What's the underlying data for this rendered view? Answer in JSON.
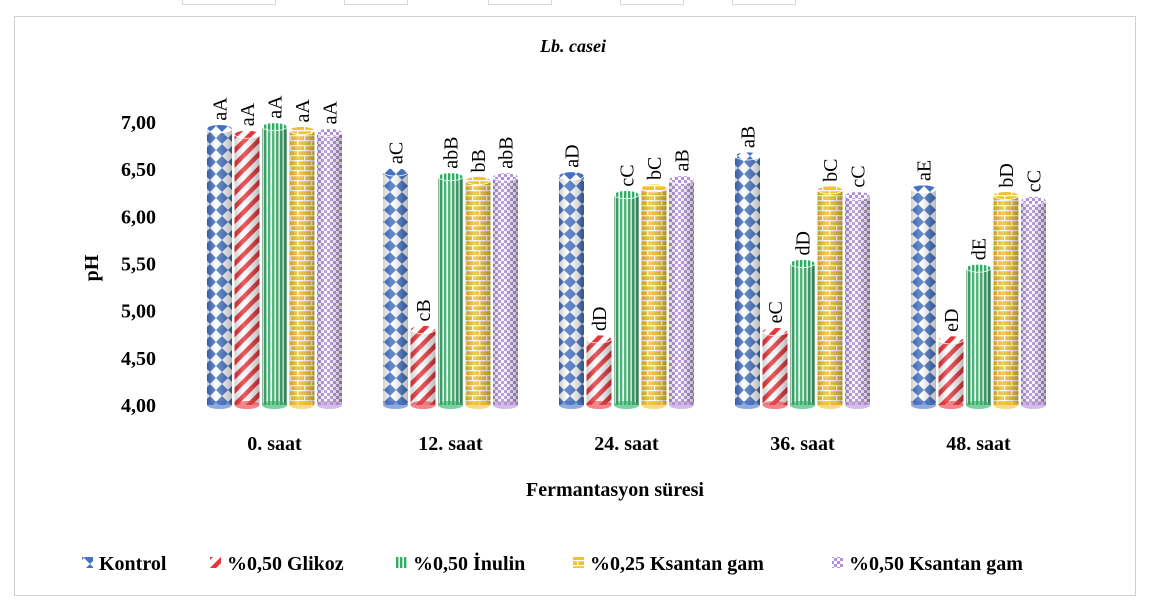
{
  "chart_data": {
    "type": "bar",
    "title": "Lb. casei",
    "xlabel": "Fermantasyon süresi",
    "ylabel": "pH",
    "ylim": [
      4.0,
      7.0
    ],
    "ytick_labels": [
      "4,00",
      "4,50",
      "5,00",
      "5,50",
      "6,00",
      "6,50",
      "7,00"
    ],
    "yticks": [
      4.0,
      4.5,
      5.0,
      5.5,
      6.0,
      6.5,
      7.0
    ],
    "categories": [
      "0. saat",
      "12. saat",
      "24. saat",
      "36. saat",
      "48. saat"
    ],
    "grid": false,
    "legend_position": "bottom",
    "series": [
      {
        "name": "Kontrol",
        "color": "#4472c4",
        "pattern": "diamonds",
        "values": [
          6.93,
          6.47,
          6.43,
          6.64,
          6.29
        ],
        "labels": [
          "aA",
          "aC",
          "aD",
          "aB",
          "aE"
        ]
      },
      {
        "name": "%0,50  Glikoz",
        "color": "#e8353b",
        "pattern": "diagonal",
        "values": [
          6.87,
          4.8,
          4.7,
          4.78,
          4.69
        ],
        "labels": [
          "aA",
          "cB",
          "dD",
          "eC",
          "eD"
        ]
      },
      {
        "name": "%0,50 İnulin",
        "color": "#2fae66",
        "pattern": "vertical",
        "values": [
          6.95,
          6.42,
          6.23,
          5.5,
          5.45
        ],
        "labels": [
          "aA",
          "abB",
          "cC",
          "dD",
          "dE"
        ]
      },
      {
        "name": "%0,25 Ksantan gam",
        "color": "#f2c12e",
        "pattern": "bricks",
        "values": [
          6.91,
          6.38,
          6.3,
          6.28,
          6.22
        ],
        "labels": [
          "aA",
          "bB",
          "bC",
          "bC",
          "bD"
        ]
      },
      {
        "name": "%0,50 Ksantan gam",
        "color": "#b58fdb",
        "pattern": "checker",
        "values": [
          6.89,
          6.42,
          6.39,
          6.22,
          6.17
        ],
        "labels": [
          "aA",
          "abB",
          "aB",
          "cC",
          "cC"
        ]
      }
    ]
  }
}
